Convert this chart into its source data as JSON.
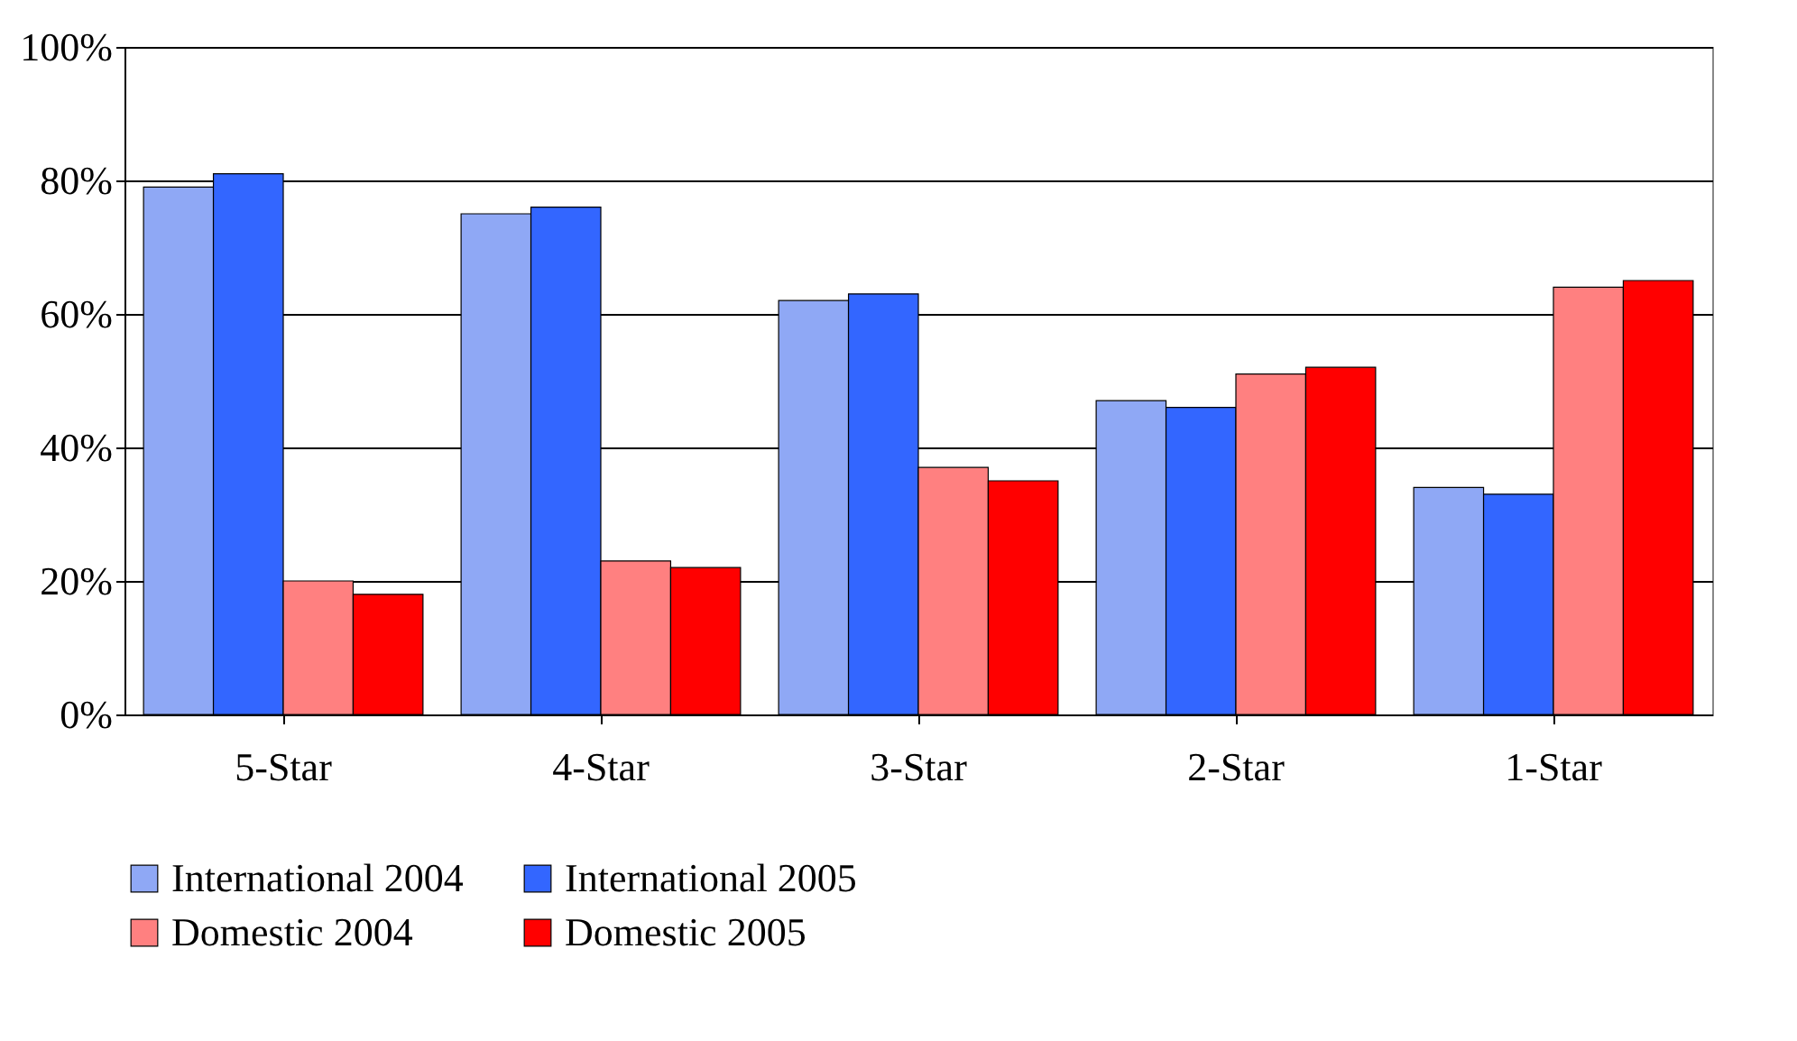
{
  "chart_data": {
    "type": "bar",
    "categories": [
      "5-Star",
      "4-Star",
      "3-Star",
      "2-Star",
      "1-Star"
    ],
    "series": [
      {
        "name": "International 2004",
        "color": "#8fa8f5",
        "values": [
          79,
          75,
          62,
          47,
          34
        ]
      },
      {
        "name": "International 2005",
        "color": "#3366ff",
        "values": [
          81,
          76,
          63,
          46,
          33
        ]
      },
      {
        "name": "Domestic 2004",
        "color": "#ff8080",
        "values": [
          20,
          23,
          37,
          51,
          64
        ]
      },
      {
        "name": "Domestic 2005",
        "color": "#ff0000",
        "values": [
          18,
          22,
          35,
          52,
          65
        ]
      }
    ],
    "ylim": [
      0,
      100
    ],
    "yticks": [
      {
        "value": 0,
        "label": "0%"
      },
      {
        "value": 20,
        "label": "20%"
      },
      {
        "value": 40,
        "label": "40%"
      },
      {
        "value": 60,
        "label": "60%"
      },
      {
        "value": 80,
        "label": "80%"
      },
      {
        "value": 100,
        "label": "100%"
      }
    ],
    "grid": "y",
    "legend": "bottom"
  }
}
